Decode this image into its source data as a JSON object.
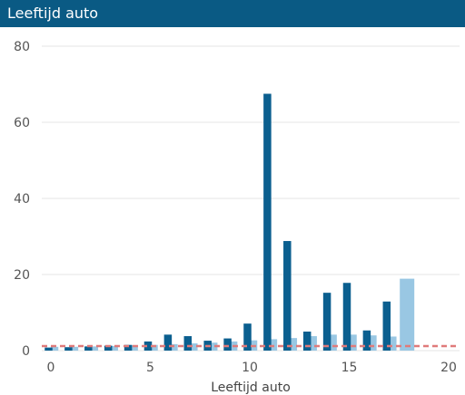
{
  "header": {
    "title": "Leeftijd auto"
  },
  "colors": {
    "header_bg": "#0a5a84",
    "series_dark": "#0b5f8f",
    "series_light": "#99c7e3",
    "reference_line": "#e07a7a",
    "grid": "#e6e6e6"
  },
  "chart_data": {
    "type": "bar",
    "title": "",
    "xlabel": "Leeftijd auto",
    "ylabel": "",
    "xlim": [
      -0.5,
      20
    ],
    "ylim": [
      0,
      80
    ],
    "x_ticks": [
      0,
      5,
      10,
      15,
      20
    ],
    "y_ticks": [
      0,
      20,
      40,
      60,
      80
    ],
    "grid": "horizontal",
    "legend": "none",
    "series": [
      {
        "values": [
          {
            "x": 0,
            "y": 0.8
          },
          {
            "x": 1,
            "y": 0.9
          },
          {
            "x": 2,
            "y": 1.1
          },
          {
            "x": 3,
            "y": 1.3
          },
          {
            "x": 4,
            "y": 1.5
          },
          {
            "x": 5,
            "y": 2.4
          },
          {
            "x": 6,
            "y": 4.2
          },
          {
            "x": 7,
            "y": 3.8
          },
          {
            "x": 8,
            "y": 2.6
          },
          {
            "x": 9,
            "y": 3.2
          },
          {
            "x": 10,
            "y": 7.1
          },
          {
            "x": 11,
            "y": 67.5
          },
          {
            "x": 12,
            "y": 28.8
          },
          {
            "x": 13,
            "y": 5.0
          },
          {
            "x": 14,
            "y": 15.2
          },
          {
            "x": 15,
            "y": 17.8
          },
          {
            "x": 16,
            "y": 5.3
          },
          {
            "x": 17,
            "y": 12.9
          }
        ]
      },
      {
        "values": [
          {
            "x": 0,
            "y": 1.0
          },
          {
            "x": 1,
            "y": 1.0
          },
          {
            "x": 2,
            "y": 1.1
          },
          {
            "x": 3,
            "y": 1.2
          },
          {
            "x": 4,
            "y": 1.4
          },
          {
            "x": 5,
            "y": 1.5
          },
          {
            "x": 6,
            "y": 1.7
          },
          {
            "x": 7,
            "y": 1.9
          },
          {
            "x": 8,
            "y": 2.1
          },
          {
            "x": 9,
            "y": 2.4
          },
          {
            "x": 10,
            "y": 2.7
          },
          {
            "x": 11,
            "y": 3.0
          },
          {
            "x": 12,
            "y": 3.3
          },
          {
            "x": 13,
            "y": 3.8
          },
          {
            "x": 14,
            "y": 4.2
          },
          {
            "x": 15,
            "y": 4.2
          },
          {
            "x": 16,
            "y": 4.0
          },
          {
            "x": 17,
            "y": 3.7
          },
          {
            "x": 18,
            "y": 18.9
          }
        ]
      }
    ],
    "reference_line": {
      "y": 1.2,
      "style": "dashed"
    }
  }
}
